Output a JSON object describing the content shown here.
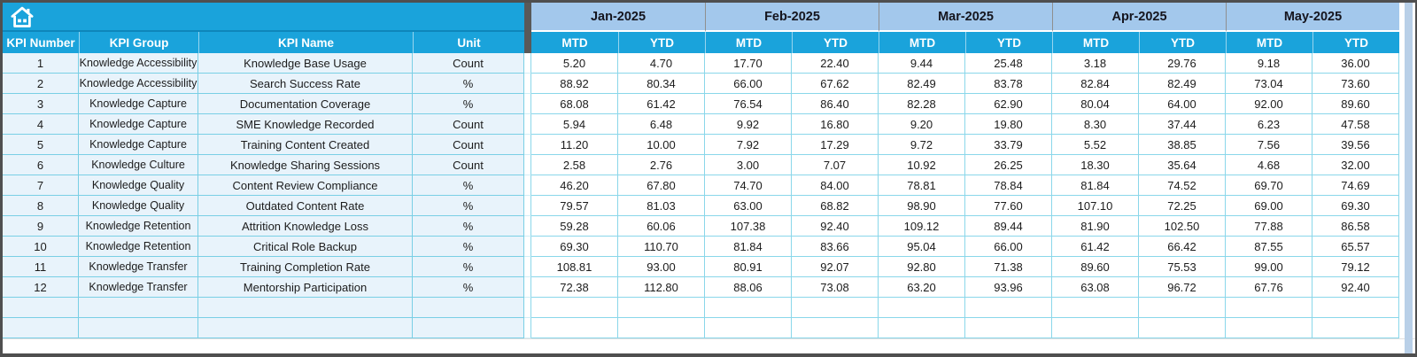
{
  "colors": {
    "header_cyan": "#1aa3db",
    "month_band_blue": "#a3c8ec",
    "left_cell_bg": "#e8f3fb",
    "grid_line": "#79cfe5",
    "outer_border": "#4f4f4f"
  },
  "table": {
    "left_headers": {
      "kpi_number": "KPI Number",
      "kpi_group": "KPI Group",
      "kpi_name": "KPI Name",
      "unit": "Unit"
    },
    "months": [
      "Jan-2025",
      "Feb-2025",
      "Mar-2025",
      "Apr-2025",
      "May-2025"
    ],
    "sub_headers": [
      "MTD",
      "YTD"
    ],
    "rows": [
      {
        "number": "1",
        "group": "Knowledge Accessibility",
        "name": "Knowledge Base Usage",
        "unit": "Count",
        "values": [
          "5.20",
          "4.70",
          "17.70",
          "22.40",
          "9.44",
          "25.48",
          "3.18",
          "29.76",
          "9.18",
          "36.00"
        ]
      },
      {
        "number": "2",
        "group": "Knowledge Accessibility",
        "name": "Search Success Rate",
        "unit": "%",
        "values": [
          "88.92",
          "80.34",
          "66.00",
          "67.62",
          "82.49",
          "83.78",
          "82.84",
          "82.49",
          "73.04",
          "73.60"
        ]
      },
      {
        "number": "3",
        "group": "Knowledge Capture",
        "name": "Documentation Coverage",
        "unit": "%",
        "values": [
          "68.08",
          "61.42",
          "76.54",
          "86.40",
          "82.28",
          "62.90",
          "80.04",
          "64.00",
          "92.00",
          "89.60"
        ]
      },
      {
        "number": "4",
        "group": "Knowledge Capture",
        "name": "SME Knowledge Recorded",
        "unit": "Count",
        "values": [
          "5.94",
          "6.48",
          "9.92",
          "16.80",
          "9.20",
          "19.80",
          "8.30",
          "37.44",
          "6.23",
          "47.58"
        ]
      },
      {
        "number": "5",
        "group": "Knowledge Capture",
        "name": "Training Content Created",
        "unit": "Count",
        "values": [
          "11.20",
          "10.00",
          "7.92",
          "17.29",
          "9.72",
          "33.79",
          "5.52",
          "38.85",
          "7.56",
          "39.56"
        ]
      },
      {
        "number": "6",
        "group": "Knowledge Culture",
        "name": "Knowledge Sharing Sessions",
        "unit": "Count",
        "values": [
          "2.58",
          "2.76",
          "3.00",
          "7.07",
          "10.92",
          "26.25",
          "18.30",
          "35.64",
          "4.68",
          "32.00"
        ]
      },
      {
        "number": "7",
        "group": "Knowledge Quality",
        "name": "Content Review Compliance",
        "unit": "%",
        "values": [
          "46.20",
          "67.80",
          "74.70",
          "84.00",
          "78.81",
          "78.84",
          "81.84",
          "74.52",
          "69.70",
          "74.69"
        ]
      },
      {
        "number": "8",
        "group": "Knowledge Quality",
        "name": "Outdated Content Rate",
        "unit": "%",
        "values": [
          "79.57",
          "81.03",
          "63.00",
          "68.82",
          "98.90",
          "77.60",
          "107.10",
          "72.25",
          "69.00",
          "69.30"
        ]
      },
      {
        "number": "9",
        "group": "Knowledge Retention",
        "name": "Attrition Knowledge Loss",
        "unit": "%",
        "values": [
          "59.28",
          "60.06",
          "107.38",
          "92.40",
          "109.12",
          "89.44",
          "81.90",
          "102.50",
          "77.88",
          "86.58"
        ]
      },
      {
        "number": "10",
        "group": "Knowledge Retention",
        "name": "Critical Role Backup",
        "unit": "%",
        "values": [
          "69.30",
          "110.70",
          "81.84",
          "83.66",
          "95.04",
          "66.00",
          "61.42",
          "66.42",
          "87.55",
          "65.57"
        ]
      },
      {
        "number": "11",
        "group": "Knowledge Transfer",
        "name": "Training Completion Rate",
        "unit": "%",
        "values": [
          "108.81",
          "93.00",
          "80.91",
          "92.07",
          "92.80",
          "71.38",
          "89.60",
          "75.53",
          "99.00",
          "79.12"
        ]
      },
      {
        "number": "12",
        "group": "Knowledge Transfer",
        "name": "Mentorship Participation",
        "unit": "%",
        "values": [
          "72.38",
          "112.80",
          "88.06",
          "73.08",
          "63.20",
          "93.96",
          "63.08",
          "96.72",
          "67.76",
          "92.40"
        ]
      }
    ],
    "empty_row_count": 2
  }
}
